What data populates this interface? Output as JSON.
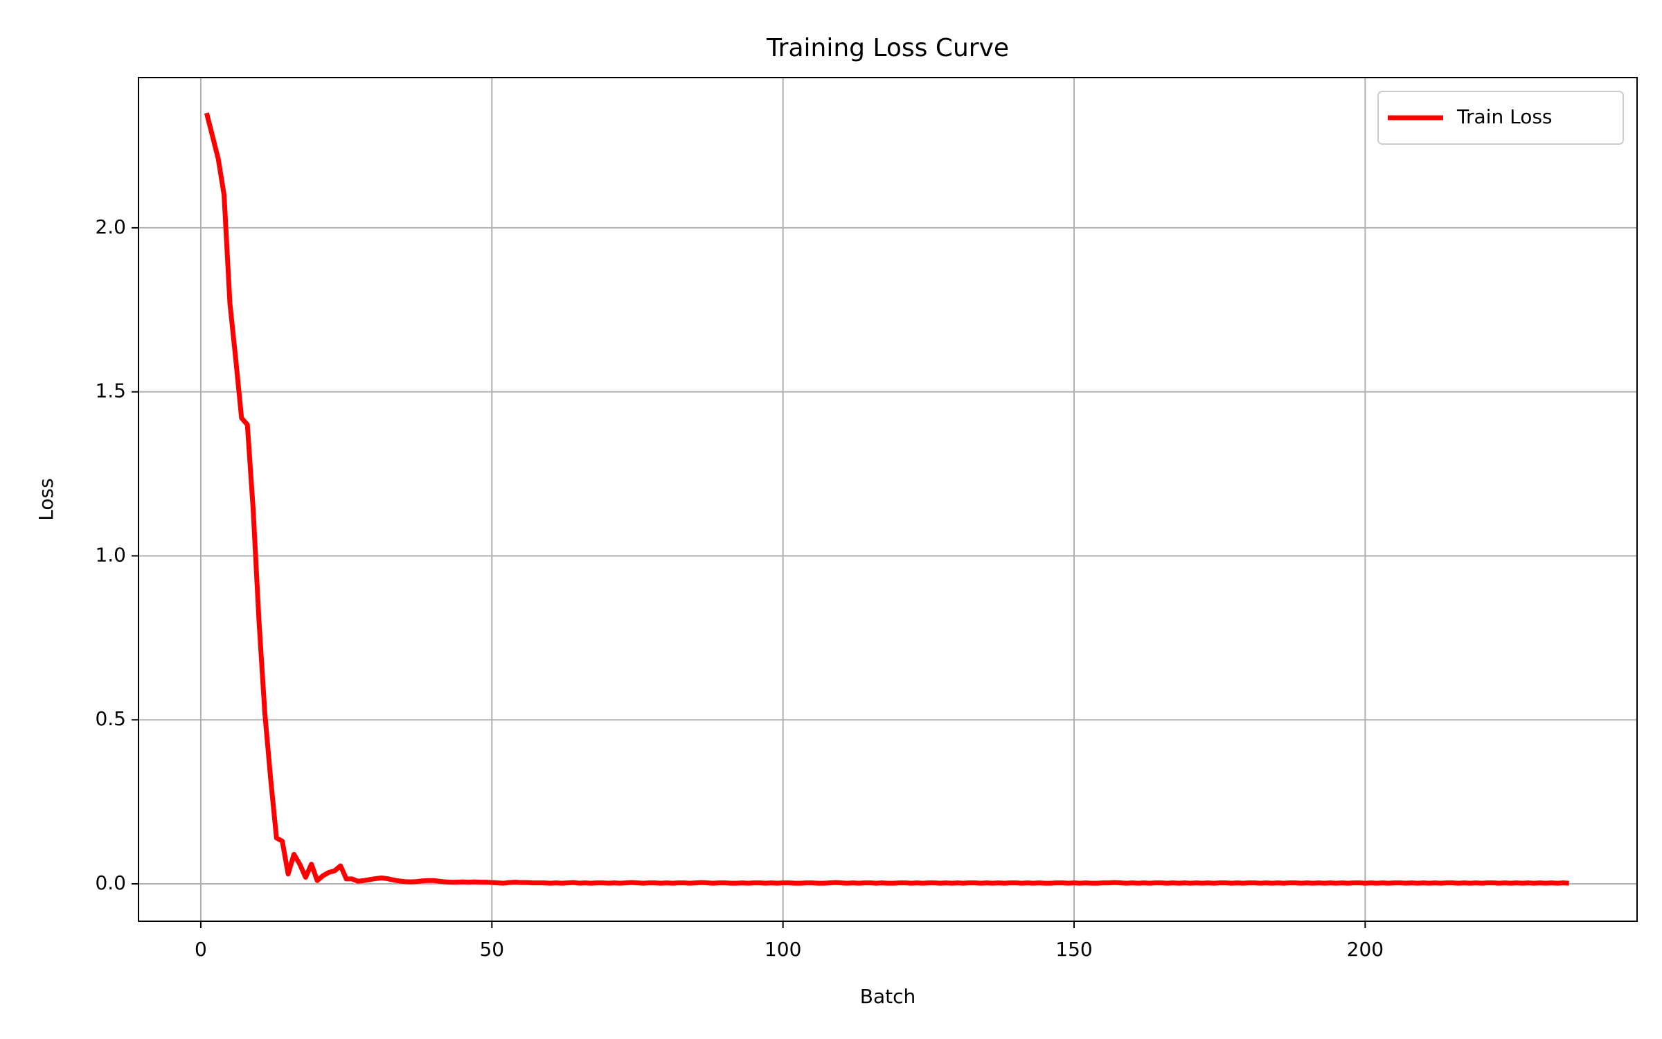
{
  "chart_data": {
    "type": "line",
    "title": "Training Loss Curve",
    "xlabel": "Batch",
    "ylabel": "Loss",
    "x": [
      1,
      2,
      3,
      4,
      5,
      6,
      7,
      8,
      9,
      10,
      11,
      12,
      13,
      14,
      15,
      16,
      17,
      18,
      19,
      20,
      21,
      22,
      23,
      24,
      25,
      26,
      27,
      28,
      29,
      30,
      31,
      32,
      33,
      34,
      35,
      36,
      37,
      38,
      39,
      40,
      41,
      42,
      43,
      44,
      45,
      46,
      47,
      48,
      49,
      50,
      51,
      52,
      53,
      54,
      55,
      56,
      57,
      58,
      59,
      60,
      61,
      62,
      63,
      64,
      65,
      66,
      67,
      68,
      69,
      70,
      71,
      72,
      73,
      74,
      75,
      76,
      77,
      78,
      79,
      80,
      81,
      82,
      83,
      84,
      85,
      86,
      87,
      88,
      89,
      90,
      91,
      92,
      93,
      94,
      95,
      96,
      97,
      98,
      99,
      100,
      101,
      102,
      103,
      104,
      105,
      106,
      107,
      108,
      109,
      110,
      111,
      112,
      113,
      114,
      115,
      116,
      117,
      118,
      119,
      120,
      121,
      122,
      123,
      124,
      125,
      126,
      127,
      128,
      129,
      130,
      131,
      132,
      133,
      134,
      135,
      136,
      137,
      138,
      139,
      140,
      141,
      142,
      143,
      144,
      145,
      146,
      147,
      148,
      149,
      150,
      151,
      152,
      153,
      154,
      155,
      156,
      157,
      158,
      159,
      160,
      161,
      162,
      163,
      164,
      165,
      166,
      167,
      168,
      169,
      170,
      171,
      172,
      173,
      174,
      175,
      176,
      177,
      178,
      179,
      180,
      181,
      182,
      183,
      184,
      185,
      186,
      187,
      188,
      189,
      190,
      191,
      192,
      193,
      194,
      195,
      196,
      197,
      198,
      199,
      200,
      201,
      202,
      203,
      204,
      205,
      206,
      207,
      208,
      209,
      210,
      211,
      212,
      213,
      214,
      215,
      216,
      217,
      218,
      219,
      220,
      221,
      222,
      223,
      224,
      225,
      226,
      227,
      228,
      229,
      230,
      231,
      232,
      233,
      234,
      235
    ],
    "series": [
      {
        "name": "Train Loss",
        "color": "#ff0000",
        "values": [
          2.35,
          2.28,
          2.21,
          2.1,
          1.77,
          1.6,
          1.42,
          1.4,
          1.14,
          0.8,
          0.52,
          0.32,
          0.14,
          0.13,
          0.03,
          0.09,
          0.06,
          0.02,
          0.06,
          0.01,
          0.025,
          0.035,
          0.04,
          0.055,
          0.015,
          0.015,
          0.008,
          0.01,
          0.013,
          0.016,
          0.018,
          0.016,
          0.012,
          0.009,
          0.007,
          0.006,
          0.007,
          0.009,
          0.01,
          0.01,
          0.008,
          0.006,
          0.005,
          0.005,
          0.006,
          0.005,
          0.006,
          0.005,
          0.005,
          0.004,
          0.003,
          0.002,
          0.004,
          0.005,
          0.004,
          0.004,
          0.003,
          0.003,
          0.003,
          0.002,
          0.003,
          0.002,
          0.003,
          0.004,
          0.002,
          0.003,
          0.002,
          0.003,
          0.003,
          0.002,
          0.003,
          0.002,
          0.003,
          0.004,
          0.003,
          0.002,
          0.003,
          0.003,
          0.002,
          0.003,
          0.002,
          0.003,
          0.003,
          0.002,
          0.003,
          0.004,
          0.003,
          0.002,
          0.003,
          0.003,
          0.002,
          0.002,
          0.003,
          0.002,
          0.003,
          0.003,
          0.002,
          0.003,
          0.002,
          0.003,
          0.003,
          0.002,
          0.002,
          0.003,
          0.003,
          0.002,
          0.002,
          0.003,
          0.004,
          0.003,
          0.002,
          0.003,
          0.002,
          0.003,
          0.003,
          0.002,
          0.003,
          0.002,
          0.002,
          0.003,
          0.003,
          0.002,
          0.003,
          0.002,
          0.003,
          0.003,
          0.002,
          0.003,
          0.002,
          0.003,
          0.002,
          0.003,
          0.003,
          0.002,
          0.003,
          0.002,
          0.003,
          0.002,
          0.003,
          0.003,
          0.002,
          0.003,
          0.002,
          0.003,
          0.002,
          0.002,
          0.003,
          0.003,
          0.002,
          0.003,
          0.002,
          0.003,
          0.002,
          0.002,
          0.003,
          0.003,
          0.004,
          0.003,
          0.002,
          0.003,
          0.002,
          0.003,
          0.002,
          0.003,
          0.003,
          0.002,
          0.003,
          0.002,
          0.003,
          0.002,
          0.003,
          0.002,
          0.003,
          0.002,
          0.003,
          0.003,
          0.002,
          0.003,
          0.002,
          0.003,
          0.003,
          0.002,
          0.003,
          0.002,
          0.003,
          0.002,
          0.003,
          0.003,
          0.002,
          0.003,
          0.002,
          0.003,
          0.002,
          0.003,
          0.002,
          0.003,
          0.002,
          0.003,
          0.003,
          0.002,
          0.003,
          0.002,
          0.003,
          0.002,
          0.003,
          0.003,
          0.002,
          0.003,
          0.002,
          0.003,
          0.002,
          0.003,
          0.002,
          0.003,
          0.003,
          0.002,
          0.003,
          0.002,
          0.003,
          0.002,
          0.003,
          0.003,
          0.002,
          0.003,
          0.002,
          0.003,
          0.002,
          0.003,
          0.002,
          0.003,
          0.002,
          0.003,
          0.002,
          0.003,
          0.002
        ]
      }
    ],
    "xlim": [
      -10.7,
      246.7
    ],
    "xticks": [
      0,
      50,
      100,
      150,
      200
    ],
    "ylim": [
      -0.114,
      2.458
    ],
    "yticks": [
      {
        "value": 0,
        "label": "0.0"
      },
      0.5,
      {
        "value": 1,
        "label": "1.0"
      },
      1.5,
      {
        "value": 2,
        "label": "2.0"
      }
    ],
    "grid": true,
    "legend": "upper right"
  }
}
